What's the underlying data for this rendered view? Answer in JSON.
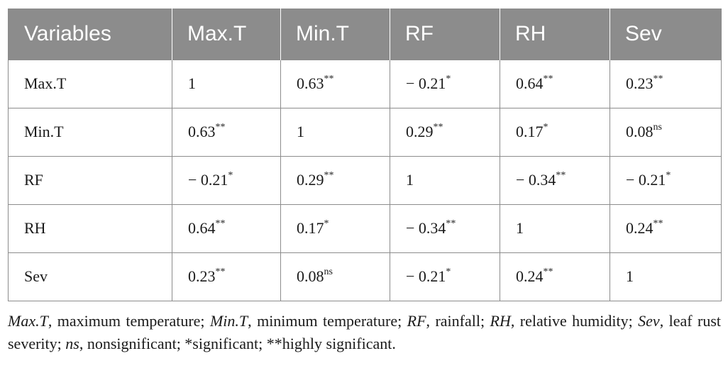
{
  "table": {
    "headers": [
      "Variables",
      "Max.T",
      "Min.T",
      "RF",
      "RH",
      "Sev"
    ],
    "rows": [
      {
        "label": "Max.T",
        "cells": [
          {
            "v": "1",
            "s": ""
          },
          {
            "v": "0.63",
            "s": "**"
          },
          {
            "v": "− 0.21",
            "s": "*"
          },
          {
            "v": "0.64",
            "s": "**"
          },
          {
            "v": "0.23",
            "s": "**"
          }
        ]
      },
      {
        "label": "Min.T",
        "cells": [
          {
            "v": "0.63",
            "s": "**"
          },
          {
            "v": "1",
            "s": ""
          },
          {
            "v": "0.29",
            "s": "**"
          },
          {
            "v": "0.17",
            "s": "*"
          },
          {
            "v": "0.08",
            "s": "ns"
          }
        ]
      },
      {
        "label": "RF",
        "cells": [
          {
            "v": "− 0.21",
            "s": "*"
          },
          {
            "v": "0.29",
            "s": "**"
          },
          {
            "v": "1",
            "s": ""
          },
          {
            "v": "− 0.34",
            "s": "**"
          },
          {
            "v": "− 0.21",
            "s": "*"
          }
        ]
      },
      {
        "label": "RH",
        "cells": [
          {
            "v": "0.64",
            "s": "**"
          },
          {
            "v": "0.17",
            "s": "*"
          },
          {
            "v": "− 0.34",
            "s": "**"
          },
          {
            "v": "1",
            "s": ""
          },
          {
            "v": "0.24",
            "s": "**"
          }
        ]
      },
      {
        "label": "Sev",
        "cells": [
          {
            "v": "0.23",
            "s": "**"
          },
          {
            "v": "0.08",
            "s": "ns"
          },
          {
            "v": "− 0.21",
            "s": "*"
          },
          {
            "v": "0.24",
            "s": "**"
          },
          {
            "v": "1",
            "s": ""
          }
        ]
      }
    ]
  },
  "footnote": [
    {
      "term": "Max.T",
      "def": ", maximum temperature; "
    },
    {
      "term": "Min.T",
      "def": ", minimum temperature; "
    },
    {
      "term": "RF",
      "def": ", rainfall; "
    },
    {
      "term": "RH",
      "def": ", relative humidity; "
    },
    {
      "term": "Sev",
      "def": ", leaf rust severity; "
    },
    {
      "term": "ns",
      "def": ", nonsignificant; *significant; **highly significant."
    }
  ],
  "colors": {
    "header_bg": "#8c8c8c",
    "header_text": "#ffffff",
    "grid": "#8c8c8c",
    "body_text": "#1a1a1a"
  }
}
